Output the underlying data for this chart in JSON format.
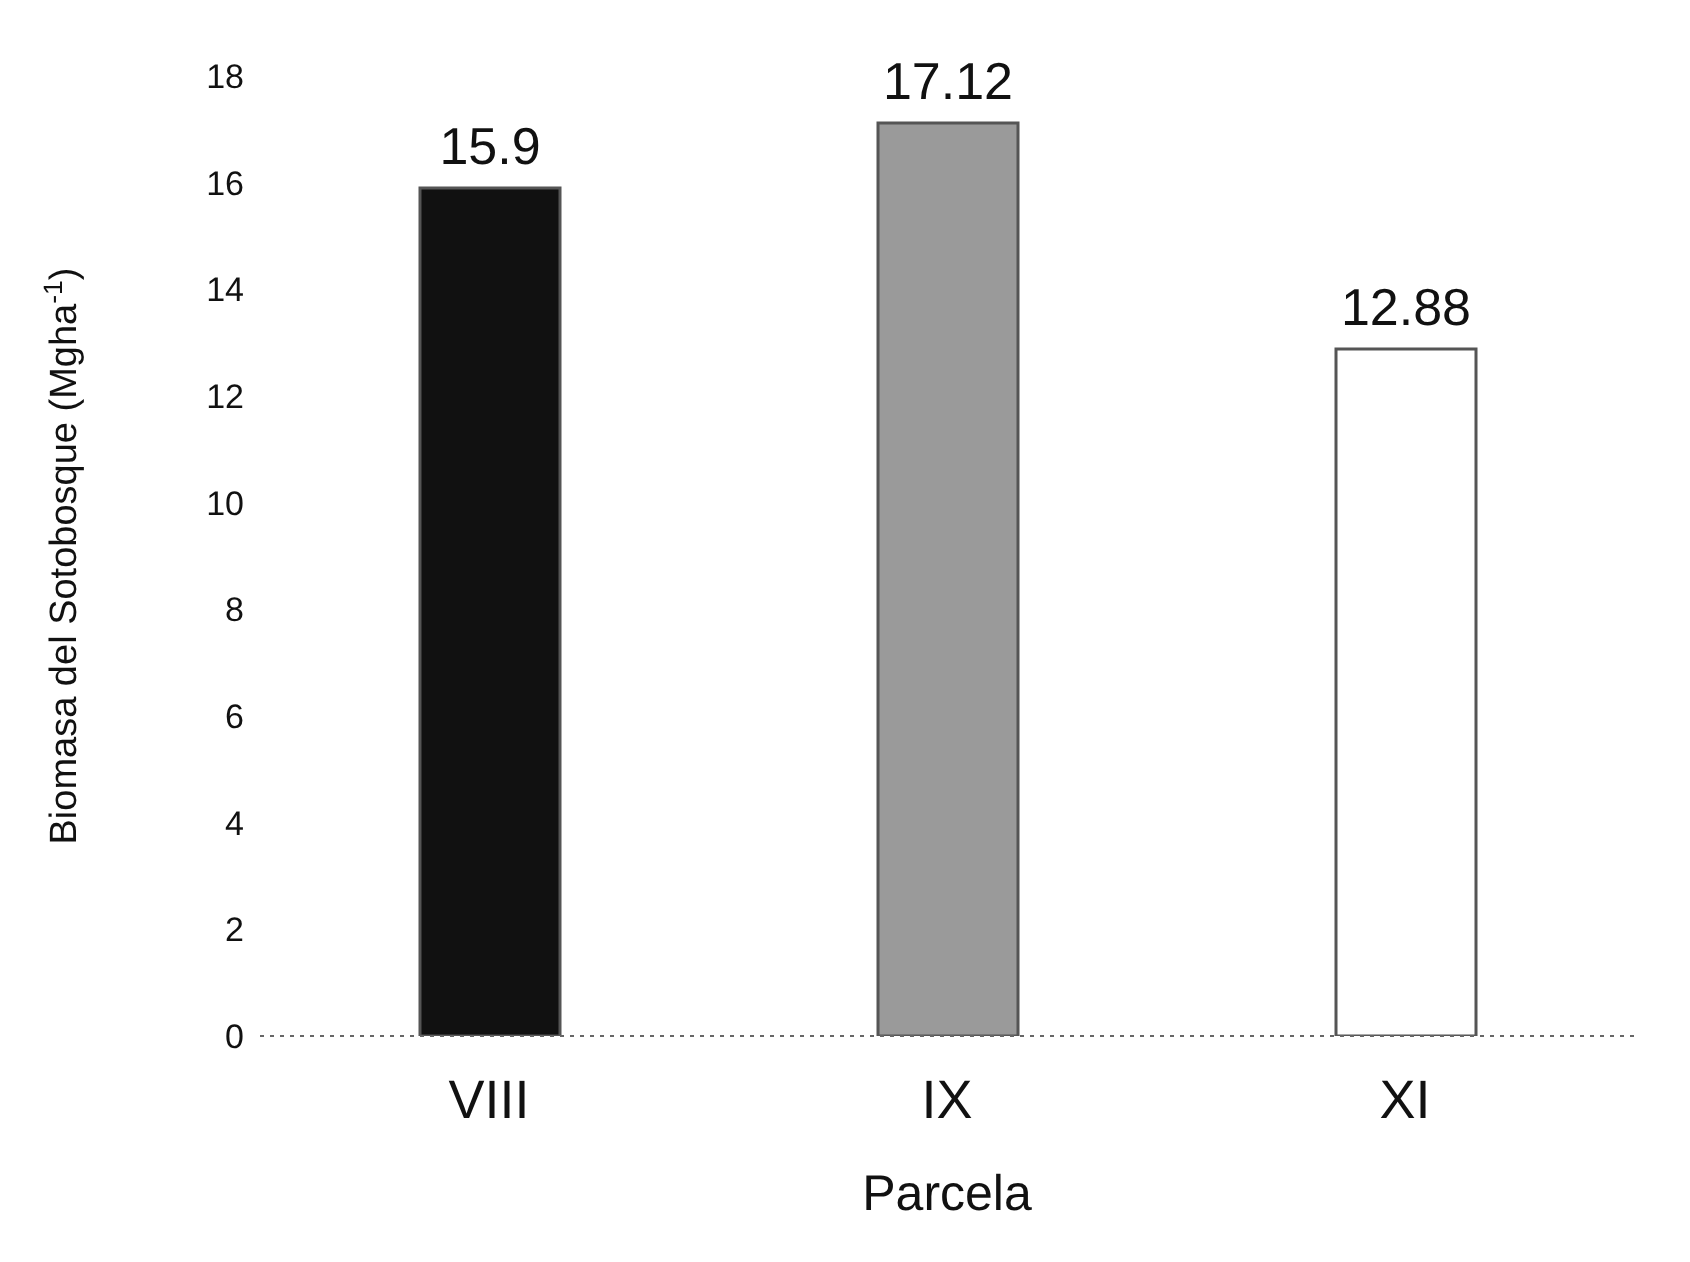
{
  "chart_data": {
    "type": "bar",
    "xlabel": "Parcela",
    "ylabel": "Biomasa del Sotobosque (Mgha$^{-1}$)",
    "categories": [
      "VIII",
      "IX",
      "XI"
    ],
    "values": [
      15.9,
      17.12,
      12.88
    ],
    "colors": [
      "#111111",
      "#9a9a9a",
      "#ffffff"
    ],
    "ylim": [
      0,
      18
    ],
    "yticks": [
      0,
      2,
      4,
      6,
      8,
      10,
      12,
      14,
      16,
      18
    ],
    "grid": false,
    "data_labels": true,
    "legend": false
  }
}
